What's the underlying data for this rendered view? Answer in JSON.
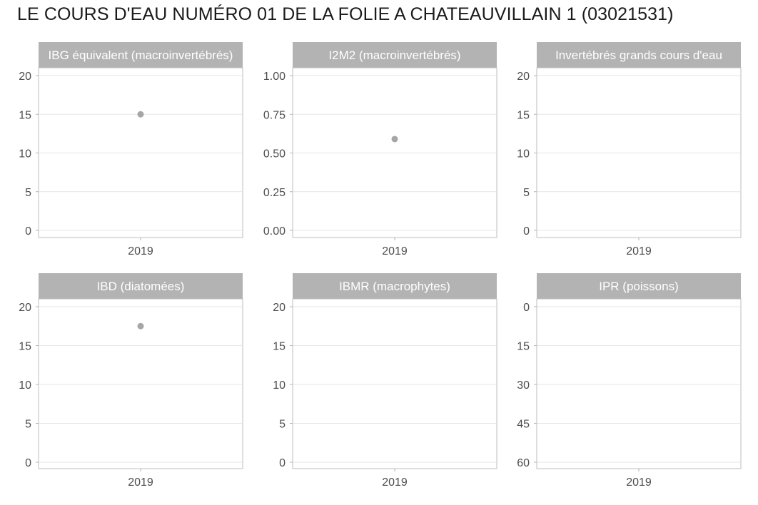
{
  "title": "LE COURS D'EAU NUMÉRO 01 DE LA FOLIE A CHATEAUVILLAIN 1 (03021531)",
  "colors": {
    "strip": "#b3b3b3",
    "strip_text": "#ffffff",
    "point": "#a6a6a6",
    "grid": "#e6e6e6",
    "border": "#bdbdbd"
  },
  "chart_data": [
    {
      "type": "scatter",
      "title": "IBG équivalent (macroinvertébrés)",
      "categories": [
        "2019"
      ],
      "ylim": [
        0,
        20
      ],
      "yticks": [
        0,
        5,
        10,
        15,
        20
      ],
      "y_reversed": false,
      "series": [
        {
          "x": [
            "2019"
          ],
          "values": [
            15
          ]
        }
      ]
    },
    {
      "type": "scatter",
      "title": "I2M2 (macroinvertébrés)",
      "categories": [
        "2019"
      ],
      "ylim": [
        0,
        1
      ],
      "yticks": [
        "0.00",
        "0.25",
        "0.50",
        "0.75",
        "1.00"
      ],
      "y_reversed": false,
      "series": [
        {
          "x": [
            "2019"
          ],
          "values": [
            0.59
          ]
        }
      ]
    },
    {
      "type": "scatter",
      "title": "Invertébrés grands cours d'eau",
      "categories": [
        "2019"
      ],
      "ylim": [
        0,
        20
      ],
      "yticks": [
        0,
        5,
        10,
        15,
        20
      ],
      "y_reversed": false,
      "series": []
    },
    {
      "type": "scatter",
      "title": "IBD (diatomées)",
      "categories": [
        "2019"
      ],
      "ylim": [
        0,
        20
      ],
      "yticks": [
        0,
        5,
        10,
        15,
        20
      ],
      "y_reversed": false,
      "series": [
        {
          "x": [
            "2019"
          ],
          "values": [
            17.5
          ]
        }
      ]
    },
    {
      "type": "scatter",
      "title": "IBMR (macrophytes)",
      "categories": [
        "2019"
      ],
      "ylim": [
        0,
        20
      ],
      "yticks": [
        0,
        5,
        10,
        15,
        20
      ],
      "y_reversed": false,
      "series": []
    },
    {
      "type": "scatter",
      "title": "IPR (poissons)",
      "categories": [
        "2019"
      ],
      "ylim": [
        0,
        60
      ],
      "yticks": [
        0,
        15,
        30,
        45,
        60
      ],
      "y_reversed": true,
      "series": []
    }
  ]
}
